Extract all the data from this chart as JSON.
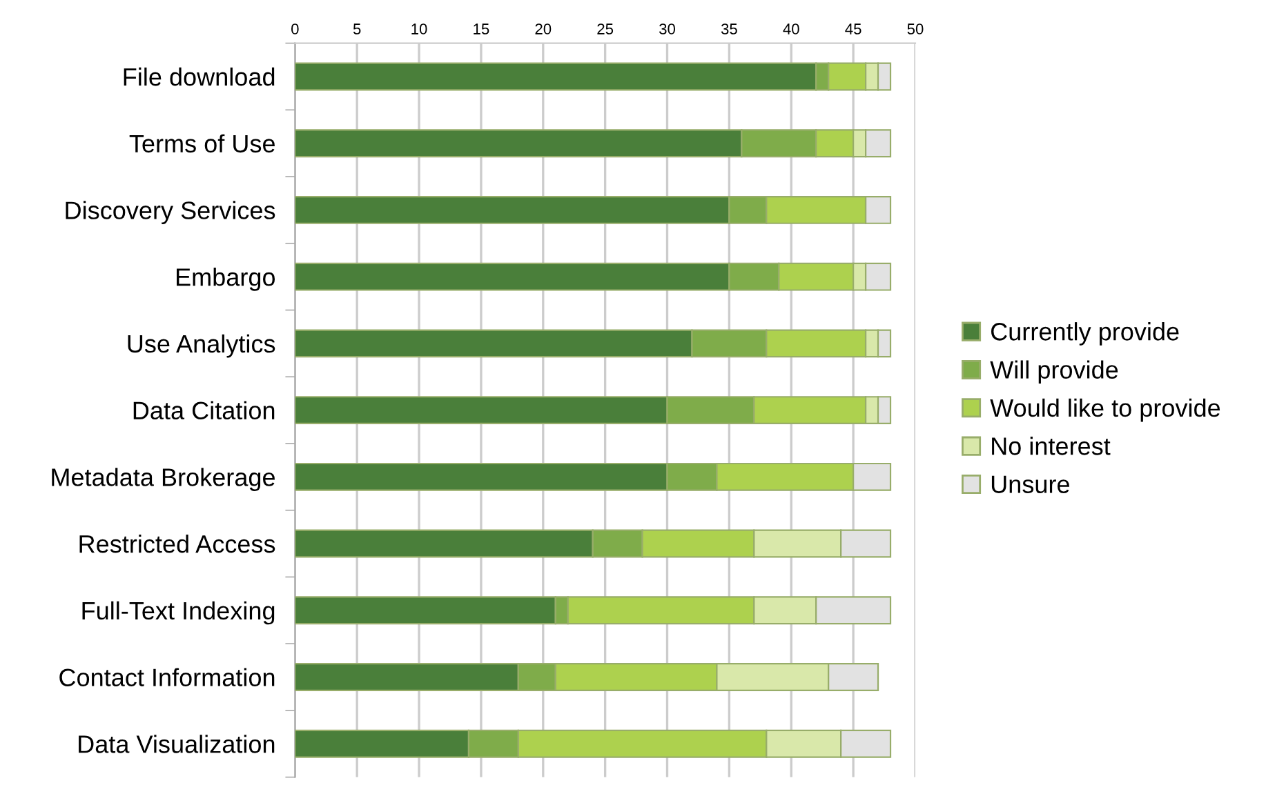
{
  "chart_data": {
    "type": "bar",
    "orientation": "horizontal",
    "stacked": true,
    "categories": [
      "File download",
      "Terms of Use",
      "Discovery Services",
      "Embargo",
      "Use Analytics",
      "Data Citation",
      "Metadata Brokerage",
      "Restricted Access",
      "Full-Text Indexing",
      "Contact Information",
      "Data Visualization"
    ],
    "series": [
      {
        "name": "Currently provide",
        "color": "#4a7f3a",
        "values": [
          42,
          36,
          35,
          35,
          32,
          30,
          30,
          24,
          21,
          18,
          14
        ]
      },
      {
        "name": "Will provide",
        "color": "#7fac4a",
        "values": [
          1,
          6,
          3,
          4,
          6,
          7,
          4,
          4,
          1,
          3,
          4
        ]
      },
      {
        "name": "Would like to provide",
        "color": "#add14e",
        "values": [
          3,
          3,
          8,
          6,
          8,
          9,
          11,
          9,
          15,
          13,
          20
        ]
      },
      {
        "name": "No interest",
        "color": "#d9e8aa",
        "values": [
          1,
          1,
          0,
          1,
          1,
          1,
          0,
          7,
          5,
          9,
          6
        ]
      },
      {
        "name": "Unsure",
        "color": "#e2e2e2",
        "values": [
          1,
          2,
          2,
          2,
          1,
          1,
          3,
          4,
          6,
          4,
          4
        ]
      }
    ],
    "xlim": [
      0,
      50
    ],
    "xticks": [
      0,
      5,
      10,
      15,
      20,
      25,
      30,
      35,
      40,
      45,
      50
    ],
    "grid": "x",
    "legend": "right"
  }
}
